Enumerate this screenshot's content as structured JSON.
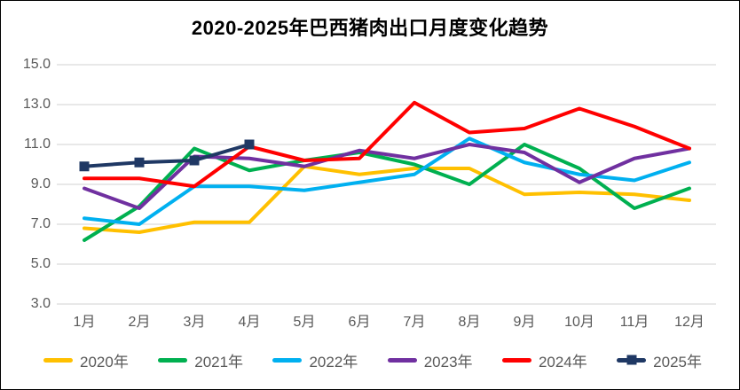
{
  "chart_data": {
    "type": "line",
    "title": "2020-2025年巴西猪肉出口月度变化趋势",
    "categories": [
      "1月",
      "2月",
      "3月",
      "4月",
      "5月",
      "6月",
      "7月",
      "8月",
      "9月",
      "10月",
      "11月",
      "12月"
    ],
    "series": [
      {
        "name": "2020年",
        "color": "#FFC000",
        "marker": "none",
        "values": [
          6.8,
          6.6,
          7.1,
          7.1,
          9.9,
          9.5,
          9.8,
          9.8,
          8.5,
          8.6,
          8.5,
          8.2
        ]
      },
      {
        "name": "2021年",
        "color": "#00B050",
        "marker": "none",
        "values": [
          6.2,
          7.9,
          10.8,
          9.7,
          10.2,
          10.6,
          10.0,
          9.0,
          11.0,
          9.8,
          7.8,
          8.8
        ]
      },
      {
        "name": "2022年",
        "color": "#00B0F0",
        "marker": "none",
        "values": [
          7.3,
          7.0,
          8.9,
          8.9,
          8.7,
          9.1,
          9.5,
          11.3,
          10.1,
          9.5,
          9.2,
          10.1
        ]
      },
      {
        "name": "2023年",
        "color": "#7030A0",
        "marker": "none",
        "values": [
          8.8,
          7.8,
          10.4,
          10.3,
          9.9,
          10.7,
          10.3,
          11.0,
          10.6,
          9.1,
          10.3,
          10.8
        ]
      },
      {
        "name": "2024年",
        "color": "#FF0000",
        "marker": "none",
        "values": [
          9.3,
          9.3,
          8.9,
          10.9,
          10.2,
          10.3,
          13.1,
          11.6,
          11.8,
          12.8,
          11.9,
          10.8
        ]
      },
      {
        "name": "2025年",
        "color": "#1F3864",
        "marker": "square",
        "values": [
          9.9,
          10.1,
          10.2,
          11.0
        ]
      }
    ],
    "ylim": [
      3.0,
      15.0
    ],
    "ytick_labels": [
      "15.0",
      "13.0",
      "11.0",
      "9.0",
      "7.0",
      "5.0",
      "3.0"
    ],
    "grid": true,
    "legend_position": "bottom",
    "grid_color": "#D9D9D9",
    "tick_label_color": "#595959"
  }
}
